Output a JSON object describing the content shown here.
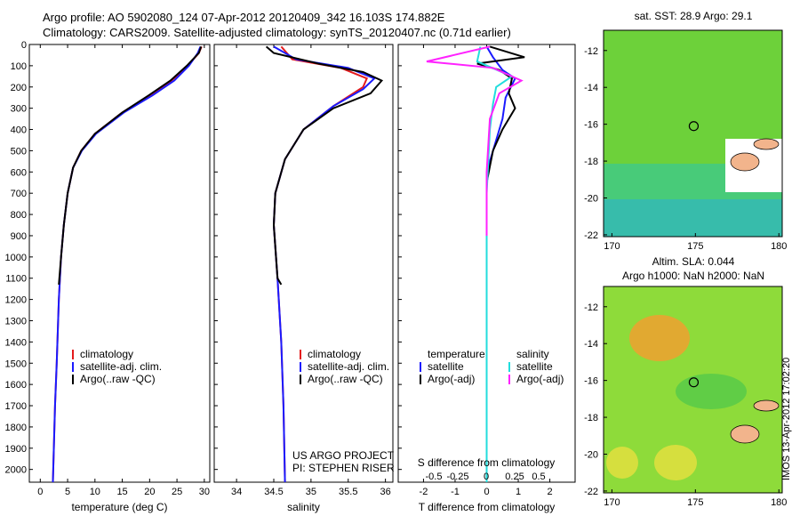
{
  "header": {
    "line1": "Argo profile: AO 5902080_124 07-Apr-2012 20120409_342 16.103S 174.882E",
    "line2": "Climatology: CARS2009. Satellite-adjusted climatology: synTS_20120407.nc (0.71d earlier)"
  },
  "footer": {
    "project": "US ARGO PROJECT",
    "pi": "PI: STEPHEN RISER",
    "stamp": "IMOS 13-Apr-2012 17:02:20"
  },
  "colors": {
    "climatology": "#e41a1c",
    "satellite": "#1a1aff",
    "argo": "#000000",
    "satellite_salt": "#22dddd",
    "argo_salt_adj": "#ff22ff"
  },
  "chart_data": [
    {
      "type": "line",
      "xlabel": "temperature (deg C)",
      "ylabel": "",
      "xticks": [
        "0",
        "5",
        "10",
        "15",
        "20",
        "25",
        "30"
      ],
      "xlim": [
        -2,
        31
      ],
      "yticks": [
        "0",
        "100",
        "200",
        "300",
        "400",
        "500",
        "600",
        "700",
        "800",
        "900",
        "1000",
        "1100",
        "1200",
        "1300",
        "1400",
        "1500",
        "1600",
        "1700",
        "1800",
        "1900",
        "2000"
      ],
      "ylim": [
        2060,
        0
      ],
      "legend": [
        "climatology",
        "satellite-adj. clim.",
        "Argo(..raw -QC)"
      ],
      "series": [
        {
          "name": "climatology",
          "color": "#e41a1c",
          "points": [
            [
              29.5,
              10
            ],
            [
              29,
              40
            ],
            [
              27,
              100
            ],
            [
              24,
              170
            ],
            [
              20,
              240
            ],
            [
              15,
              320
            ],
            [
              10,
              420
            ],
            [
              7.5,
              500
            ],
            [
              6,
              580
            ],
            [
              5,
              700
            ],
            [
              4.3,
              850
            ],
            [
              3.8,
              1000
            ],
            [
              3.4,
              1200
            ],
            [
              3,
              1500
            ],
            [
              2.7,
              1700
            ],
            [
              2.3,
              2060
            ]
          ]
        },
        {
          "name": "satellite-adj. clim.",
          "color": "#1a1aff",
          "points": [
            [
              29.3,
              10
            ],
            [
              28.8,
              40
            ],
            [
              27.2,
              100
            ],
            [
              24.5,
              170
            ],
            [
              20.5,
              240
            ],
            [
              15.3,
              320
            ],
            [
              10.2,
              420
            ],
            [
              7.6,
              500
            ],
            [
              6,
              580
            ],
            [
              5,
              700
            ],
            [
              4.3,
              850
            ],
            [
              3.8,
              1000
            ],
            [
              3.4,
              1200
            ],
            [
              3,
              1500
            ],
            [
              2.7,
              1700
            ],
            [
              2.3,
              2060
            ]
          ]
        },
        {
          "name": "Argo(..raw -QC)",
          "color": "#000000",
          "points": [
            [
              29.4,
              10
            ],
            [
              29,
              40
            ],
            [
              26.8,
              100
            ],
            [
              23.8,
              170
            ],
            [
              19.8,
              240
            ],
            [
              15,
              320
            ],
            [
              10,
              420
            ],
            [
              7.5,
              500
            ],
            [
              6,
              580
            ],
            [
              5,
              700
            ],
            [
              4.3,
              850
            ],
            [
              3.8,
              1000
            ],
            [
              3.4,
              1130
            ]
          ]
        }
      ]
    },
    {
      "type": "line",
      "xlabel": "salinity",
      "ylabel": "",
      "xticks": [
        "34",
        "34.5",
        "35",
        "35.5",
        "36"
      ],
      "xlim": [
        33.7,
        36.1
      ],
      "yticks": [],
      "ylim": [
        2060,
        0
      ],
      "legend": [
        "climatology",
        "satellite-adj. clim.",
        "Argo(..raw -QC)"
      ],
      "series": [
        {
          "name": "climatology",
          "color": "#e41a1c",
          "points": [
            [
              34.6,
              10
            ],
            [
              34.75,
              70
            ],
            [
              35.4,
              110
            ],
            [
              35.75,
              160
            ],
            [
              35.7,
              200
            ],
            [
              35.3,
              290
            ],
            [
              34.9,
              400
            ],
            [
              34.65,
              540
            ],
            [
              34.52,
              700
            ],
            [
              34.5,
              850
            ],
            [
              34.55,
              1100
            ],
            [
              34.6,
              1400
            ],
            [
              34.63,
              1700
            ],
            [
              34.65,
              2060
            ]
          ]
        },
        {
          "name": "satellite-adj. clim.",
          "color": "#1a1aff",
          "points": [
            [
              34.5,
              10
            ],
            [
              34.8,
              70
            ],
            [
              35.5,
              110
            ],
            [
              35.85,
              160
            ],
            [
              35.7,
              210
            ],
            [
              35.3,
              290
            ],
            [
              34.9,
              400
            ],
            [
              34.65,
              540
            ],
            [
              34.52,
              700
            ],
            [
              34.5,
              850
            ],
            [
              34.55,
              1100
            ],
            [
              34.6,
              1400
            ],
            [
              34.63,
              1700
            ],
            [
              34.65,
              2060
            ]
          ]
        },
        {
          "name": "Argo(..raw -QC)",
          "color": "#000000",
          "points": [
            [
              34.4,
              10
            ],
            [
              34.5,
              40
            ],
            [
              35.1,
              90
            ],
            [
              35.7,
              130
            ],
            [
              35.95,
              170
            ],
            [
              35.8,
              230
            ],
            [
              35.3,
              300
            ],
            [
              34.9,
              400
            ],
            [
              34.65,
              540
            ],
            [
              34.52,
              700
            ],
            [
              34.5,
              850
            ],
            [
              34.55,
              1100
            ],
            [
              34.6,
              1130
            ]
          ]
        }
      ]
    },
    {
      "type": "line",
      "xlabel": "T difference from climatology",
      "xlabel_top": "S difference from climatology",
      "ylabel": "",
      "xticks": [
        "-2",
        "-1",
        "0",
        "1",
        "2"
      ],
      "xticks_top": [
        "-0.5",
        "-0.25",
        "0",
        "0.25",
        "0.5"
      ],
      "xlim": [
        -2.8,
        2.8
      ],
      "yticks": [],
      "ylim": [
        2060,
        0
      ],
      "legend": [
        "temperature",
        "satellite",
        "Argo(-adj)",
        "salinity",
        "satellite",
        "Argo(-adj)"
      ],
      "series": [
        {
          "name": "satellite",
          "color": "#1a1aff",
          "points": [
            [
              0,
              10
            ],
            [
              0.2,
              60
            ],
            [
              0.5,
              120
            ],
            [
              0.9,
              160
            ],
            [
              0.6,
              250
            ],
            [
              0.5,
              350
            ],
            [
              0.3,
              450
            ],
            [
              0.1,
              550
            ],
            [
              0,
              650
            ],
            [
              0,
              900
            ],
            [
              0,
              1300
            ],
            [
              0,
              1700
            ],
            [
              0,
              2060
            ]
          ]
        },
        {
          "name": "Argo(-adj)",
          "color": "#000000",
          "points": [
            [
              0.1,
              10
            ],
            [
              1.2,
              60
            ],
            [
              -0.3,
              90
            ],
            [
              0.4,
              120
            ],
            [
              0.8,
              160
            ],
            [
              0.7,
              230
            ],
            [
              0.9,
              300
            ],
            [
              0.5,
              400
            ],
            [
              0.2,
              500
            ],
            [
              0,
              650
            ],
            [
              0,
              900
            ]
          ]
        },
        {
          "name": "satellite",
          "color": "#22dddd",
          "points": [
            [
              -0.2,
              10
            ],
            [
              -0.3,
              80
            ],
            [
              0.8,
              150
            ],
            [
              0.3,
              200
            ],
            [
              0.2,
              280
            ],
            [
              0.1,
              400
            ],
            [
              0,
              700
            ],
            [
              0,
              1100
            ],
            [
              0,
              1500
            ],
            [
              0,
              2060
            ]
          ]
        },
        {
          "name": "Argo(-adj)",
          "color": "#ff22ff",
          "points": [
            [
              0.1,
              10
            ],
            [
              -1.9,
              80
            ],
            [
              0.2,
              110
            ],
            [
              1.1,
              170
            ],
            [
              0.4,
              230
            ],
            [
              0.1,
              350
            ],
            [
              0,
              600
            ],
            [
              0,
              900
            ]
          ]
        }
      ]
    },
    {
      "type": "heatmap",
      "title": "sat. SST: 28.9  Argo: 29.1",
      "xticks": [
        "170",
        "175",
        "180"
      ],
      "yticks": [
        "-12",
        "-14",
        "-16",
        "-18",
        "-20",
        "-22"
      ],
      "xlim": [
        169.5,
        180.2
      ],
      "ylim": [
        -22.1,
        -10.9
      ],
      "marker": [
        174.9,
        -16.1
      ]
    },
    {
      "type": "heatmap",
      "title": "Altim. SLA: 0.044",
      "subtitle": "Argo h1000: NaN h2000: NaN",
      "xticks": [
        "170",
        "175",
        "180"
      ],
      "yticks": [
        "-12",
        "-14",
        "-16",
        "-18",
        "-20",
        "-22"
      ],
      "xlim": [
        169.5,
        180.2
      ],
      "ylim": [
        -22.1,
        -10.9
      ],
      "marker": [
        174.9,
        -16.1
      ]
    }
  ]
}
